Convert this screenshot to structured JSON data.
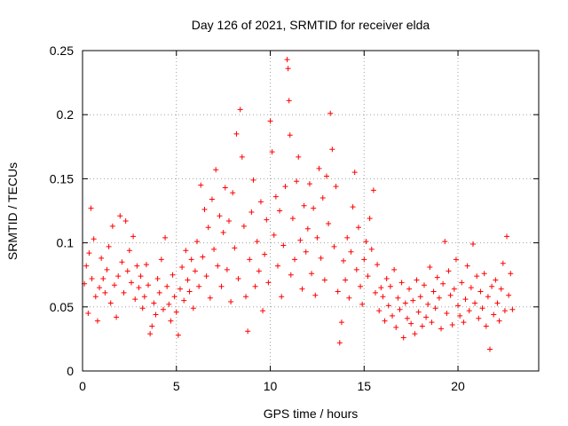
{
  "chart_data": {
    "type": "scatter",
    "title": "Day 126 of 2021, SRMTID for receiver elda",
    "xlabel": "GPS time / hours",
    "ylabel": "SRMTID / TECUs",
    "xlim": [
      0,
      24.3
    ],
    "ylim": [
      0,
      0.25
    ],
    "xticks": [
      0,
      5,
      10,
      15,
      20
    ],
    "xtick_labels": [
      "0",
      "5",
      "10",
      "15",
      "20"
    ],
    "yticks": [
      0,
      0.05,
      0.1,
      0.15,
      0.2,
      0.25
    ],
    "ytick_labels": [
      "0",
      "0.05",
      "0.1",
      "0.15",
      "0.2",
      "0.25"
    ],
    "grid": true,
    "marker": "plus",
    "marker_color": "#ff0000",
    "series": [
      {
        "name": "SRMTID",
        "points": [
          [
            0.1,
            0.068
          ],
          [
            0.2,
            0.082
          ],
          [
            0.3,
            0.045
          ],
          [
            0.35,
            0.092
          ],
          [
            0.45,
            0.127
          ],
          [
            0.5,
            0.072
          ],
          [
            0.6,
            0.103
          ],
          [
            0.7,
            0.058
          ],
          [
            0.8,
            0.039
          ],
          [
            0.9,
            0.065
          ],
          [
            1.0,
            0.088
          ],
          [
            1.1,
            0.072
          ],
          [
            1.2,
            0.061
          ],
          [
            1.3,
            0.079
          ],
          [
            1.4,
            0.097
          ],
          [
            1.5,
            0.053
          ],
          [
            1.6,
            0.113
          ],
          [
            1.7,
            0.067
          ],
          [
            1.8,
            0.042
          ],
          [
            1.9,
            0.074
          ],
          [
            2.0,
            0.121
          ],
          [
            2.1,
            0.085
          ],
          [
            2.2,
            0.061
          ],
          [
            2.3,
            0.117
          ],
          [
            2.4,
            0.078
          ],
          [
            2.5,
            0.094
          ],
          [
            2.6,
            0.069
          ],
          [
            2.7,
            0.105
          ],
          [
            2.8,
            0.056
          ],
          [
            2.9,
            0.082
          ],
          [
            3.0,
            0.065
          ],
          [
            3.1,
            0.074
          ],
          [
            3.2,
            0.049
          ],
          [
            3.3,
            0.058
          ],
          [
            3.4,
            0.083
          ],
          [
            3.5,
            0.067
          ],
          [
            3.6,
            0.029
          ],
          [
            3.7,
            0.035
          ],
          [
            3.8,
            0.053
          ],
          [
            3.9,
            0.044
          ],
          [
            4.0,
            0.072
          ],
          [
            4.1,
            0.061
          ],
          [
            4.2,
            0.087
          ],
          [
            4.3,
            0.048
          ],
          [
            4.4,
            0.104
          ],
          [
            4.5,
            0.066
          ],
          [
            4.6,
            0.052
          ],
          [
            4.7,
            0.039
          ],
          [
            4.8,
            0.075
          ],
          [
            4.9,
            0.058
          ],
          [
            5.0,
            0.046
          ],
          [
            5.1,
            0.028
          ],
          [
            5.2,
            0.064
          ],
          [
            5.3,
            0.081
          ],
          [
            5.4,
            0.055
          ],
          [
            5.5,
            0.094
          ],
          [
            5.6,
            0.071
          ],
          [
            5.7,
            0.062
          ],
          [
            5.8,
            0.087
          ],
          [
            5.9,
            0.049
          ],
          [
            6.0,
            0.078
          ],
          [
            6.1,
            0.101
          ],
          [
            6.2,
            0.066
          ],
          [
            6.3,
            0.145
          ],
          [
            6.4,
            0.089
          ],
          [
            6.5,
            0.126
          ],
          [
            6.6,
            0.074
          ],
          [
            6.7,
            0.112
          ],
          [
            6.8,
            0.057
          ],
          [
            6.9,
            0.134
          ],
          [
            7.0,
            0.095
          ],
          [
            7.1,
            0.157
          ],
          [
            7.2,
            0.082
          ],
          [
            7.3,
            0.121
          ],
          [
            7.4,
            0.066
          ],
          [
            7.5,
            0.108
          ],
          [
            7.6,
            0.143
          ],
          [
            7.7,
            0.079
          ],
          [
            7.8,
            0.117
          ],
          [
            7.9,
            0.054
          ],
          [
            8.0,
            0.139
          ],
          [
            8.1,
            0.096
          ],
          [
            8.2,
            0.185
          ],
          [
            8.3,
            0.072
          ],
          [
            8.4,
            0.204
          ],
          [
            8.5,
            0.167
          ],
          [
            8.6,
            0.113
          ],
          [
            8.7,
            0.058
          ],
          [
            8.8,
            0.031
          ],
          [
            8.9,
            0.087
          ],
          [
            9.0,
            0.124
          ],
          [
            9.1,
            0.149
          ],
          [
            9.2,
            0.066
          ],
          [
            9.3,
            0.101
          ],
          [
            9.4,
            0.078
          ],
          [
            9.5,
            0.132
          ],
          [
            9.6,
            0.047
          ],
          [
            9.7,
            0.091
          ],
          [
            9.8,
            0.118
          ],
          [
            9.9,
            0.069
          ],
          [
            10.0,
            0.195
          ],
          [
            10.1,
            0.171
          ],
          [
            10.2,
            0.106
          ],
          [
            10.3,
            0.136
          ],
          [
            10.4,
            0.082
          ],
          [
            10.5,
            0.125
          ],
          [
            10.6,
            0.058
          ],
          [
            10.7,
            0.098
          ],
          [
            10.8,
            0.144
          ],
          [
            10.9,
            0.243
          ],
          [
            10.95,
            0.236
          ],
          [
            11.0,
            0.211
          ],
          [
            11.05,
            0.184
          ],
          [
            11.1,
            0.075
          ],
          [
            11.2,
            0.119
          ],
          [
            11.3,
            0.087
          ],
          [
            11.4,
            0.148
          ],
          [
            11.5,
            0.167
          ],
          [
            11.6,
            0.102
          ],
          [
            11.7,
            0.064
          ],
          [
            11.8,
            0.129
          ],
          [
            11.9,
            0.093
          ],
          [
            12.0,
            0.111
          ],
          [
            12.1,
            0.146
          ],
          [
            12.2,
            0.076
          ],
          [
            12.3,
            0.127
          ],
          [
            12.4,
            0.059
          ],
          [
            12.5,
            0.104
          ],
          [
            12.6,
            0.158
          ],
          [
            12.7,
            0.088
          ],
          [
            12.8,
            0.135
          ],
          [
            12.9,
            0.071
          ],
          [
            13.0,
            0.152
          ],
          [
            13.1,
            0.115
          ],
          [
            13.2,
            0.201
          ],
          [
            13.3,
            0.173
          ],
          [
            13.4,
            0.097
          ],
          [
            13.5,
            0.144
          ],
          [
            13.6,
            0.062
          ],
          [
            13.7,
            0.022
          ],
          [
            13.8,
            0.038
          ],
          [
            13.9,
            0.086
          ],
          [
            14.0,
            0.071
          ],
          [
            14.1,
            0.104
          ],
          [
            14.2,
            0.057
          ],
          [
            14.3,
            0.093
          ],
          [
            14.4,
            0.128
          ],
          [
            14.5,
            0.155
          ],
          [
            14.6,
            0.079
          ],
          [
            14.7,
            0.112
          ],
          [
            14.8,
            0.066
          ],
          [
            14.9,
            0.052
          ],
          [
            15.0,
            0.087
          ],
          [
            15.1,
            0.101
          ],
          [
            15.2,
            0.074
          ],
          [
            15.3,
            0.119
          ],
          [
            15.4,
            0.095
          ],
          [
            15.5,
            0.141
          ],
          [
            15.6,
            0.061
          ],
          [
            15.7,
            0.083
          ],
          [
            15.8,
            0.047
          ],
          [
            15.9,
            0.065
          ],
          [
            16.0,
            0.058
          ],
          [
            16.1,
            0.039
          ],
          [
            16.2,
            0.072
          ],
          [
            16.3,
            0.051
          ],
          [
            16.4,
            0.066
          ],
          [
            16.5,
            0.043
          ],
          [
            16.6,
            0.079
          ],
          [
            16.7,
            0.034
          ],
          [
            16.8,
            0.057
          ],
          [
            16.9,
            0.048
          ],
          [
            17.0,
            0.069
          ],
          [
            17.1,
            0.026
          ],
          [
            17.2,
            0.053
          ],
          [
            17.3,
            0.041
          ],
          [
            17.4,
            0.064
          ],
          [
            17.5,
            0.037
          ],
          [
            17.6,
            0.055
          ],
          [
            17.7,
            0.029
          ],
          [
            17.8,
            0.071
          ],
          [
            17.9,
            0.046
          ],
          [
            18.0,
            0.058
          ],
          [
            18.1,
            0.035
          ],
          [
            18.2,
            0.067
          ],
          [
            18.3,
            0.042
          ],
          [
            18.4,
            0.052
          ],
          [
            18.5,
            0.081
          ],
          [
            18.6,
            0.038
          ],
          [
            18.7,
            0.062
          ],
          [
            18.8,
            0.049
          ],
          [
            18.9,
            0.073
          ],
          [
            19.0,
            0.057
          ],
          [
            19.1,
            0.033
          ],
          [
            19.2,
            0.068
          ],
          [
            19.3,
            0.101
          ],
          [
            19.4,
            0.045
          ],
          [
            19.5,
            0.078
          ],
          [
            19.6,
            0.059
          ],
          [
            19.7,
            0.036
          ],
          [
            19.8,
            0.064
          ],
          [
            19.9,
            0.087
          ],
          [
            20.0,
            0.051
          ],
          [
            20.1,
            0.043
          ],
          [
            20.2,
            0.069
          ],
          [
            20.3,
            0.038
          ],
          [
            20.4,
            0.056
          ],
          [
            20.5,
            0.082
          ],
          [
            20.6,
            0.047
          ],
          [
            20.7,
            0.065
          ],
          [
            20.8,
            0.099
          ],
          [
            20.9,
            0.053
          ],
          [
            21.0,
            0.074
          ],
          [
            21.1,
            0.041
          ],
          [
            21.2,
            0.062
          ],
          [
            21.3,
            0.049
          ],
          [
            21.4,
            0.076
          ],
          [
            21.5,
            0.035
          ],
          [
            21.6,
            0.058
          ],
          [
            21.7,
            0.017
          ],
          [
            21.8,
            0.066
          ],
          [
            21.9,
            0.044
          ],
          [
            22.0,
            0.071
          ],
          [
            22.1,
            0.053
          ],
          [
            22.2,
            0.039
          ],
          [
            22.3,
            0.064
          ],
          [
            22.4,
            0.084
          ],
          [
            22.5,
            0.047
          ],
          [
            22.6,
            0.105
          ],
          [
            22.7,
            0.059
          ],
          [
            22.8,
            0.076
          ],
          [
            22.9,
            0.048
          ]
        ]
      }
    ]
  }
}
